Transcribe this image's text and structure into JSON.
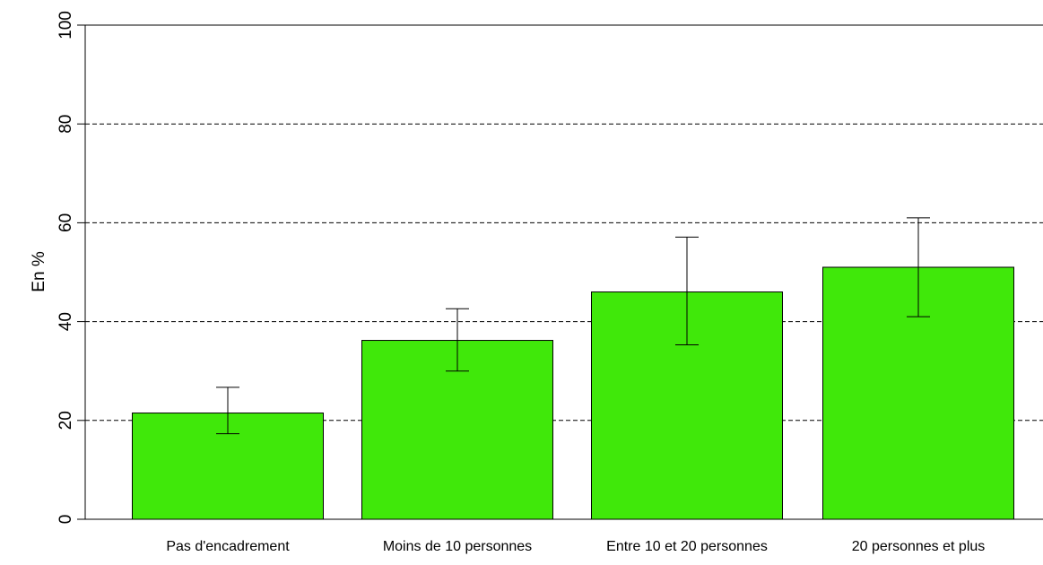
{
  "chart_data": {
    "type": "bar",
    "categories": [
      "Pas d'encadrement",
      "Moins de 10 personnes",
      "Entre 10 et 20 personnes",
      "20 personnes et plus"
    ],
    "values": [
      21.5,
      36.2,
      46.0,
      51.0
    ],
    "error_low": [
      17.3,
      30.0,
      35.3,
      41.0
    ],
    "error_high": [
      26.7,
      42.6,
      57.1,
      61.0
    ],
    "title": "",
    "xlabel": "",
    "ylabel": "En %",
    "ylim": [
      0,
      100
    ],
    "yticks": [
      0,
      20,
      40,
      60,
      80,
      100
    ],
    "gridlines": [
      20,
      40,
      60,
      80
    ],
    "grid_style": "dashed",
    "bar_color": "#40e80a",
    "bar_border_color": "#000000",
    "legend": "none"
  }
}
